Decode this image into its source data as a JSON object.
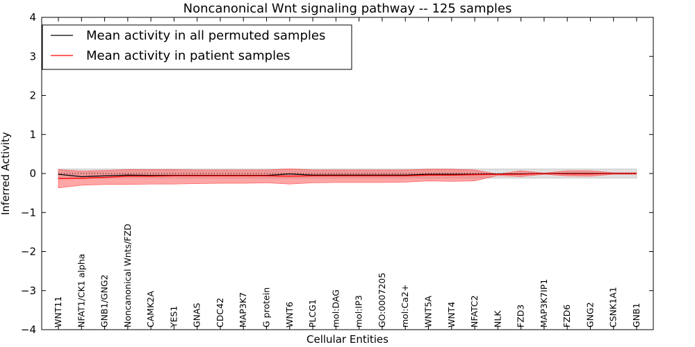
{
  "chart_data": {
    "type": "line",
    "title": "Noncanonical Wnt signaling pathway -- 125 samples",
    "xlabel": "Cellular Entities",
    "ylabel": "Inferred Activity",
    "ylim": [
      -4,
      4
    ],
    "yticks": [
      "−4",
      "−3",
      "−2",
      "−1",
      "0",
      "1",
      "2",
      "3",
      "4"
    ],
    "categories": [
      "WNT11",
      "NFAT1/CK1 alpha",
      "GNB1/GNG2",
      "Noncanonical Wnts/FZD",
      "CAMK2A",
      "YES1",
      "GNAS",
      "CDC42",
      "MAP3K7",
      "G protein",
      "WNT6",
      "PLCG1",
      "mol:DAG",
      "mol:IP3",
      "GO:0007205",
      "mol:Ca2+",
      "WNT5A",
      "WNT4",
      "NFATC2",
      "NLK",
      "FZD3",
      "MAP3K7IP1",
      "FZD6",
      "GNG2",
      "CSNK1A1",
      "GNB1"
    ],
    "legend_position": "top-left",
    "series": [
      {
        "name": "Mean activity in all permuted samples",
        "color": "#000000",
        "values": [
          -0.02,
          -0.08,
          -0.06,
          -0.04,
          -0.05,
          -0.05,
          -0.05,
          -0.05,
          -0.05,
          -0.05,
          -0.01,
          -0.04,
          -0.04,
          -0.04,
          -0.04,
          -0.04,
          -0.02,
          -0.02,
          -0.02,
          -0.01,
          -0.01,
          0.0,
          0.0,
          0.0,
          0.0,
          0.0
        ],
        "band_low": [
          -0.12,
          -0.12,
          -0.12,
          -0.12,
          -0.12,
          -0.12,
          -0.12,
          -0.12,
          -0.12,
          -0.12,
          -0.12,
          -0.12,
          -0.12,
          -0.12,
          -0.12,
          -0.12,
          -0.12,
          -0.12,
          -0.12,
          -0.12,
          -0.12,
          -0.12,
          -0.12,
          -0.12,
          -0.12,
          -0.12
        ],
        "band_high": [
          0.12,
          0.12,
          0.12,
          0.12,
          0.12,
          0.12,
          0.12,
          0.12,
          0.12,
          0.12,
          0.12,
          0.12,
          0.12,
          0.12,
          0.12,
          0.12,
          0.12,
          0.12,
          0.12,
          0.12,
          0.12,
          0.12,
          0.12,
          0.12,
          0.12,
          0.12
        ],
        "band_color": "#bbbbbb"
      },
      {
        "name": "Mean activity in patient samples",
        "color": "#ff0000",
        "values": [
          -0.13,
          -0.12,
          -0.1,
          -0.07,
          -0.07,
          -0.06,
          -0.06,
          -0.06,
          -0.06,
          -0.06,
          -0.07,
          -0.06,
          -0.06,
          -0.06,
          -0.06,
          -0.06,
          -0.04,
          -0.04,
          -0.03,
          -0.02,
          -0.02,
          0.0,
          -0.01,
          -0.01,
          0.0,
          0.0
        ],
        "band_low": [
          -0.37,
          -0.3,
          -0.28,
          -0.28,
          -0.27,
          -0.27,
          -0.26,
          -0.25,
          -0.25,
          -0.24,
          -0.27,
          -0.24,
          -0.23,
          -0.23,
          -0.23,
          -0.22,
          -0.19,
          -0.2,
          -0.19,
          -0.05,
          -0.08,
          -0.02,
          -0.06,
          -0.07,
          -0.02,
          -0.02
        ],
        "band_high": [
          0.1,
          0.06,
          0.08,
          0.1,
          0.1,
          0.1,
          0.09,
          0.09,
          0.09,
          0.09,
          0.12,
          0.09,
          0.09,
          0.09,
          0.09,
          0.09,
          0.11,
          0.11,
          0.09,
          -0.02,
          0.07,
          0.01,
          0.07,
          0.07,
          0.02,
          0.02
        ],
        "band_color": "#ff4d4d"
      }
    ],
    "zero_reference": "dotted"
  }
}
